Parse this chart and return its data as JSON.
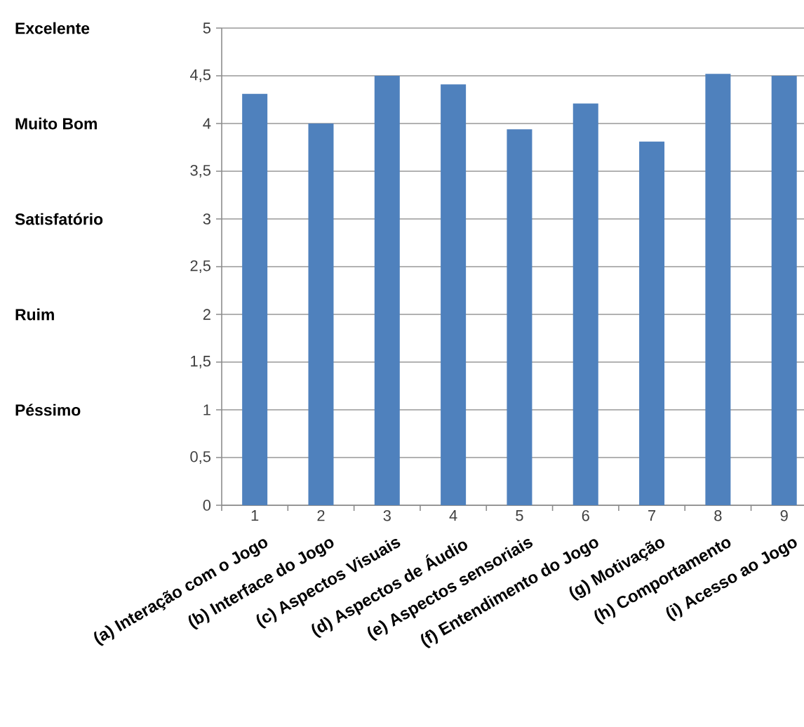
{
  "chart_data": {
    "type": "bar",
    "categories": [
      "1",
      "2",
      "3",
      "4",
      "5",
      "6",
      "7",
      "8",
      "9"
    ],
    "values": [
      4.31,
      4.0,
      4.5,
      4.41,
      3.94,
      4.21,
      3.81,
      4.52,
      4.5
    ],
    "color": "#4f81bd",
    "ylim": [
      0,
      5
    ],
    "yticks": [
      0,
      {
        "value": 0.5,
        "label": "0,5"
      },
      1,
      {
        "value": 1.5,
        "label": "1,5"
      },
      2,
      {
        "value": 2.5,
        "label": "2,5"
      },
      3,
      {
        "value": 3.5,
        "label": "3,5"
      },
      4,
      {
        "value": 4.5,
        "label": "4,5"
      },
      5
    ],
    "grid": "y",
    "annotations": [
      "Excelente",
      "Muito Bom",
      "Satisfatório",
      "Ruim",
      "Péssimo",
      "(a) Interação com o Jogo",
      "(b) Interface do Jogo",
      "(c) Aspectos Visuais",
      "(d) Aspectos de Áudio",
      "(e) Aspectos sensoriais",
      "(f) Entendimento do Jogo",
      "(g) Motivação",
      "(h) Comportamento",
      "(i) Acesso ao Jogo"
    ]
  }
}
